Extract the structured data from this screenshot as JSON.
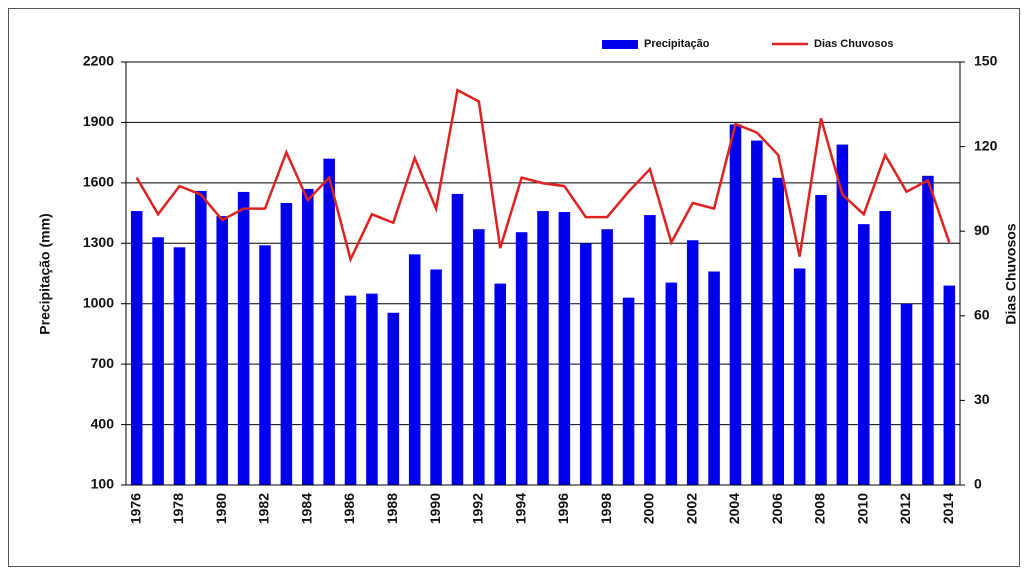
{
  "chart_data": {
    "type": "bar-line",
    "categories": [
      "1976",
      null,
      "1978",
      null,
      "1980",
      null,
      "1982",
      null,
      "1984",
      null,
      "1986",
      null,
      "1988",
      null,
      "1990",
      null,
      "1992",
      null,
      "1994",
      null,
      "1996",
      null,
      "1998",
      null,
      "2000",
      null,
      "2002",
      null,
      "2004",
      null,
      "2006",
      null,
      "2008",
      null,
      "2010",
      null,
      "2012",
      null,
      "2014"
    ],
    "series": [
      {
        "name": "Precipitação",
        "type": "bar",
        "color": "#0000ee",
        "axis": "y",
        "values": [
          1460,
          1330,
          1280,
          1560,
          1435,
          1555,
          1290,
          1500,
          1570,
          1720,
          1040,
          1050,
          955,
          1245,
          1170,
          1545,
          1370,
          1100,
          1355,
          1460,
          1455,
          1300,
          1370,
          1030,
          1440,
          1105,
          1315,
          1160,
          1890,
          1810,
          1625,
          1175,
          1540,
          1790,
          1395,
          1460,
          1000,
          1635,
          1090
        ]
      },
      {
        "name": "Dias Chuvosos",
        "type": "line",
        "color": "#dd2222",
        "axis": "y2",
        "values": [
          109,
          96,
          106,
          103,
          94,
          98,
          98,
          118,
          101,
          109,
          80,
          96,
          93,
          116,
          98,
          140,
          136,
          84,
          109,
          107,
          106,
          95,
          95,
          104,
          112,
          86,
          100,
          98,
          128,
          125,
          117,
          81,
          130,
          103,
          96,
          117,
          104,
          108,
          86
        ]
      }
    ],
    "y_label": "Precipitação (mm)",
    "y2_label": "Dias Chuvosos",
    "ylim": [
      100,
      2200
    ],
    "yticks": [
      100,
      400,
      700,
      1000,
      1300,
      1600,
      1900,
      2200
    ],
    "y2lim": [
      0,
      150
    ],
    "y2ticks": [
      0,
      30,
      60,
      90,
      120,
      150
    ],
    "grid": true,
    "legend": "top-right"
  }
}
